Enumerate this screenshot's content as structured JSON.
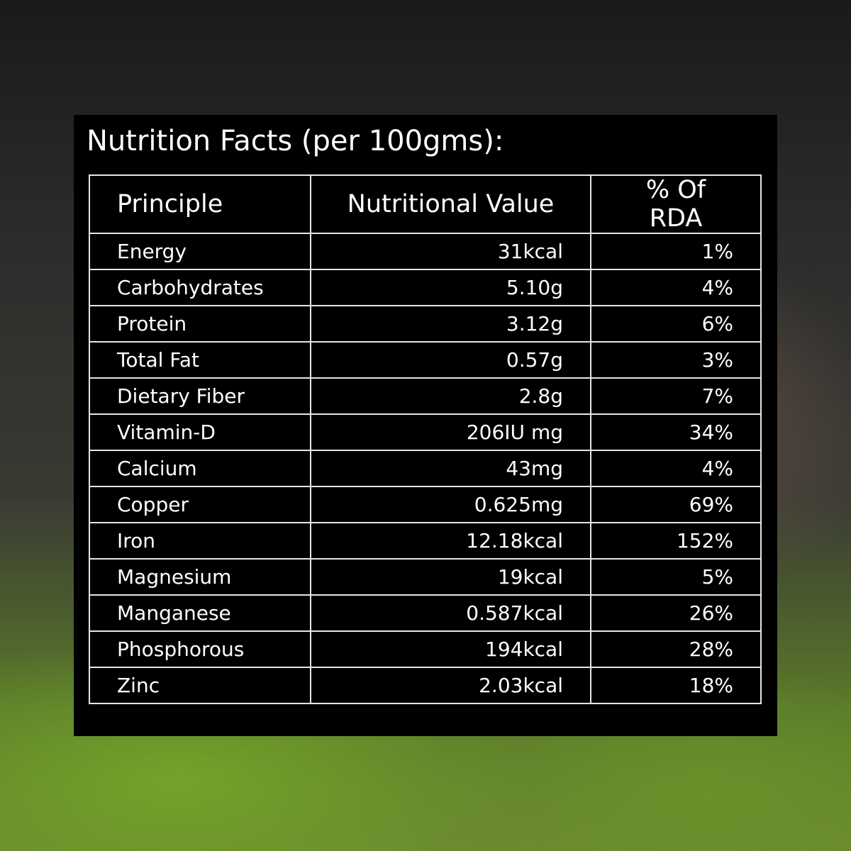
{
  "header": {
    "title": "Nutrition Facts (per 100gms):"
  },
  "table": {
    "columns": [
      "Principle",
      "Nutritional Value",
      "% Of RDA"
    ],
    "rows": [
      [
        "Energy",
        "31kcal",
        "1%"
      ],
      [
        "Carbohydrates",
        "5.10g",
        "4%"
      ],
      [
        "Protein",
        "3.12g",
        "6%"
      ],
      [
        "Total Fat",
        "0.57g",
        "3%"
      ],
      [
        "Dietary Fiber",
        "2.8g",
        "7%"
      ],
      [
        "Vitamin-D",
        "206IU mg",
        "34%"
      ],
      [
        "Calcium",
        "43mg",
        "4%"
      ],
      [
        "Copper",
        "0.625mg",
        "69%"
      ],
      [
        "Iron",
        "12.18kcal",
        "152%"
      ],
      [
        "Magnesium",
        "19kcal",
        "5%"
      ],
      [
        "Manganese",
        "0.587kcal",
        "26%"
      ],
      [
        "Phosphorous",
        "194kcal",
        "28%"
      ],
      [
        "Zinc",
        "2.03kcal",
        "18%"
      ]
    ]
  }
}
